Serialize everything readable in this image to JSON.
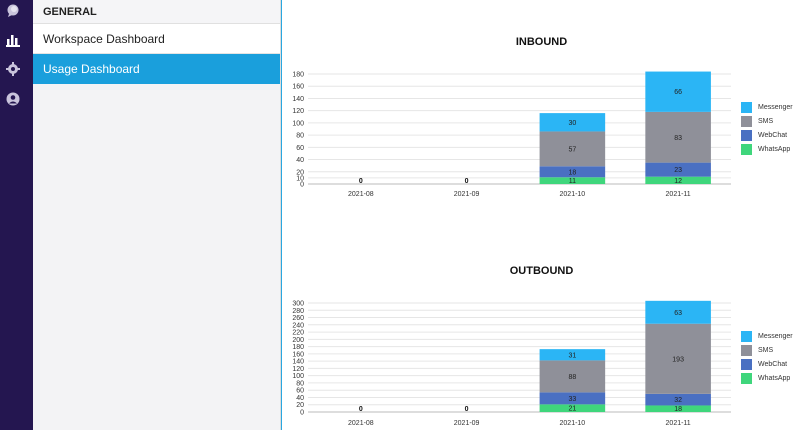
{
  "sidebar": {
    "header": "GENERAL",
    "items": [
      {
        "label": "Workspace Dashboard",
        "active": false
      },
      {
        "label": "Usage Dashboard",
        "active": true
      }
    ]
  },
  "rail_icons": [
    "chat-bubble-icon",
    "bar-chart-icon",
    "gear-icon",
    "user-icon"
  ],
  "colors": {
    "Messenger": "#2bb5f5",
    "SMS": "#8f9099",
    "WebChat": "#4a70c2",
    "WhatsApp": "#3fd67c"
  },
  "chart_data": [
    {
      "type": "bar",
      "title": "INBOUND",
      "categories": [
        "2021-08",
        "2021-09",
        "2021-10",
        "2021-11"
      ],
      "ylim": [
        0,
        180
      ],
      "yticks": [
        0,
        10,
        20,
        40,
        60,
        80,
        100,
        120,
        140,
        160,
        180
      ],
      "stacked": true,
      "series": [
        {
          "name": "WhatsApp",
          "values": [
            0,
            0,
            11,
            12
          ]
        },
        {
          "name": "WebChat",
          "values": [
            0,
            0,
            18,
            23
          ]
        },
        {
          "name": "SMS",
          "values": [
            0,
            0,
            57,
            83
          ]
        },
        {
          "name": "Messenger",
          "values": [
            0,
            0,
            30,
            66
          ]
        }
      ],
      "zero_labels": [
        "0",
        "0"
      ],
      "legend": [
        "Messenger",
        "SMS",
        "WebChat",
        "WhatsApp"
      ],
      "grid": true,
      "legend_position": "right"
    },
    {
      "type": "bar",
      "title": "OUTBOUND",
      "categories": [
        "2021-08",
        "2021-09",
        "2021-10",
        "2021-11"
      ],
      "ylim": [
        0,
        300
      ],
      "yticks": [
        0,
        20,
        40,
        60,
        80,
        100,
        120,
        140,
        160,
        180,
        200,
        220,
        240,
        260,
        280,
        300
      ],
      "stacked": true,
      "series": [
        {
          "name": "WhatsApp",
          "values": [
            0,
            0,
            21,
            18
          ]
        },
        {
          "name": "WebChat",
          "values": [
            0,
            0,
            33,
            32
          ]
        },
        {
          "name": "SMS",
          "values": [
            0,
            0,
            88,
            193
          ]
        },
        {
          "name": "Messenger",
          "values": [
            0,
            0,
            31,
            63
          ]
        }
      ],
      "zero_labels": [
        "0",
        "0"
      ],
      "legend": [
        "Messenger",
        "SMS",
        "WebChat",
        "WhatsApp"
      ],
      "grid": true,
      "legend_position": "right"
    }
  ]
}
